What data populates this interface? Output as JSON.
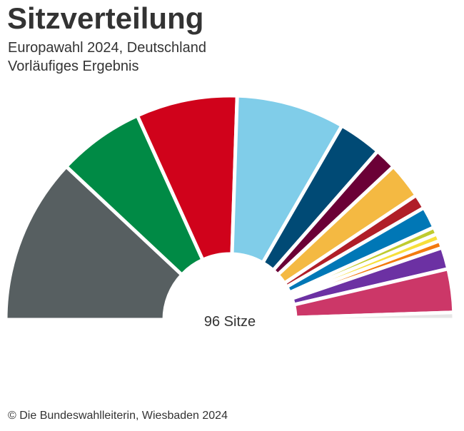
{
  "chart_data": {
    "type": "pie",
    "title": "Sitzverteilung",
    "subtitle": [
      "Europawahl 2024, Deutschland",
      "Vorläufiges Ergebnis"
    ],
    "center_label": "96 Sitze",
    "total": 96,
    "layout": "semicircle parliament (half donut)",
    "values": [
      23,
      12,
      14,
      15,
      6,
      3,
      5,
      2,
      3,
      1,
      1,
      1,
      3,
      6,
      1
    ],
    "colors": [
      "#575f61",
      "#008a45",
      "#d0021b",
      "#80cde9",
      "#004a75",
      "#6b0036",
      "#f4b942",
      "#b01e28",
      "#0077b6",
      "#bfcb2f",
      "#f7df3b",
      "#f37a0f",
      "#6c31a3",
      "#cc3768",
      "#e6e6e6"
    ]
  },
  "footer": "© Die Bundeswahlleiterin, Wiesbaden 2024"
}
